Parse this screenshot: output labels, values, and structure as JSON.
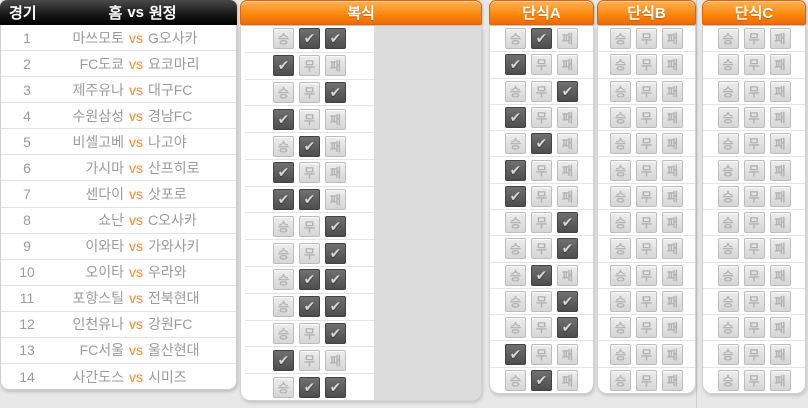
{
  "options": {
    "win": "승",
    "draw": "무",
    "lose": "패",
    "check_glyph": "✔"
  },
  "colors": {
    "accent_orange": "#f57c00",
    "vs_orange": "#ff8327",
    "header_black": "#1a1a1a",
    "checked_box": "#595959",
    "unchecked_box": "#dddddd",
    "page_bg": "#e8e8e8"
  },
  "left_table": {
    "header": {
      "match_col": "경기",
      "home": "홈",
      "vs": "vs",
      "away": "원정"
    },
    "vs_label": "vs",
    "rows": [
      {
        "no": "1",
        "home": "마쓰모토",
        "away": "G오사카"
      },
      {
        "no": "2",
        "home": "FC도쿄",
        "away": "요코마리"
      },
      {
        "no": "3",
        "home": "제주유나",
        "away": "대구FC"
      },
      {
        "no": "4",
        "home": "수원삼성",
        "away": "경남FC"
      },
      {
        "no": "5",
        "home": "비셀고베",
        "away": "나고야"
      },
      {
        "no": "6",
        "home": "가시마",
        "away": "산프히로"
      },
      {
        "no": "7",
        "home": "센다이",
        "away": "삿포로"
      },
      {
        "no": "8",
        "home": "쇼난",
        "away": "C오사카"
      },
      {
        "no": "9",
        "home": "이와타",
        "away": "가와사키"
      },
      {
        "no": "10",
        "home": "오이타",
        "away": "우라와"
      },
      {
        "no": "11",
        "home": "포항스틸",
        "away": "전북현대"
      },
      {
        "no": "12",
        "home": "인천유나",
        "away": "강원FC"
      },
      {
        "no": "13",
        "home": "FC서울",
        "away": "울산현대"
      },
      {
        "no": "14",
        "home": "사간도스",
        "away": "시미즈"
      }
    ]
  },
  "panels": [
    {
      "id": "doubles",
      "title": "복식",
      "picks": [
        [
          0,
          1,
          1
        ],
        [
          1,
          0,
          0
        ],
        [
          0,
          0,
          1
        ],
        [
          1,
          0,
          0
        ],
        [
          0,
          1,
          0
        ],
        [
          1,
          0,
          0
        ],
        [
          1,
          1,
          0
        ],
        [
          0,
          0,
          1
        ],
        [
          0,
          0,
          1
        ],
        [
          0,
          1,
          1
        ],
        [
          0,
          1,
          1
        ],
        [
          0,
          0,
          1
        ],
        [
          1,
          0,
          0
        ],
        [
          0,
          1,
          1
        ]
      ]
    },
    {
      "id": "singles-a",
      "title": "단식A",
      "picks": [
        [
          0,
          1,
          0
        ],
        [
          1,
          0,
          0
        ],
        [
          0,
          0,
          1
        ],
        [
          1,
          0,
          0
        ],
        [
          0,
          1,
          0
        ],
        [
          1,
          0,
          0
        ],
        [
          1,
          0,
          0
        ],
        [
          0,
          0,
          1
        ],
        [
          0,
          0,
          1
        ],
        [
          0,
          1,
          0
        ],
        [
          0,
          0,
          1
        ],
        [
          0,
          0,
          1
        ],
        [
          1,
          0,
          0
        ],
        [
          0,
          1,
          0
        ]
      ]
    },
    {
      "id": "singles-b",
      "title": "단식B",
      "picks": [
        [
          0,
          0,
          0
        ],
        [
          0,
          0,
          0
        ],
        [
          0,
          0,
          0
        ],
        [
          0,
          0,
          0
        ],
        [
          0,
          0,
          0
        ],
        [
          0,
          0,
          0
        ],
        [
          0,
          0,
          0
        ],
        [
          0,
          0,
          0
        ],
        [
          0,
          0,
          0
        ],
        [
          0,
          0,
          0
        ],
        [
          0,
          0,
          0
        ],
        [
          0,
          0,
          0
        ],
        [
          0,
          0,
          0
        ],
        [
          0,
          0,
          0
        ]
      ]
    },
    {
      "id": "singles-c",
      "title": "단식C",
      "picks": [
        [
          0,
          0,
          0
        ],
        [
          0,
          0,
          0
        ],
        [
          0,
          0,
          0
        ],
        [
          0,
          0,
          0
        ],
        [
          0,
          0,
          0
        ],
        [
          0,
          0,
          0
        ],
        [
          0,
          0,
          0
        ],
        [
          0,
          0,
          0
        ],
        [
          0,
          0,
          0
        ],
        [
          0,
          0,
          0
        ],
        [
          0,
          0,
          0
        ],
        [
          0,
          0,
          0
        ],
        [
          0,
          0,
          0
        ],
        [
          0,
          0,
          0
        ]
      ]
    }
  ]
}
